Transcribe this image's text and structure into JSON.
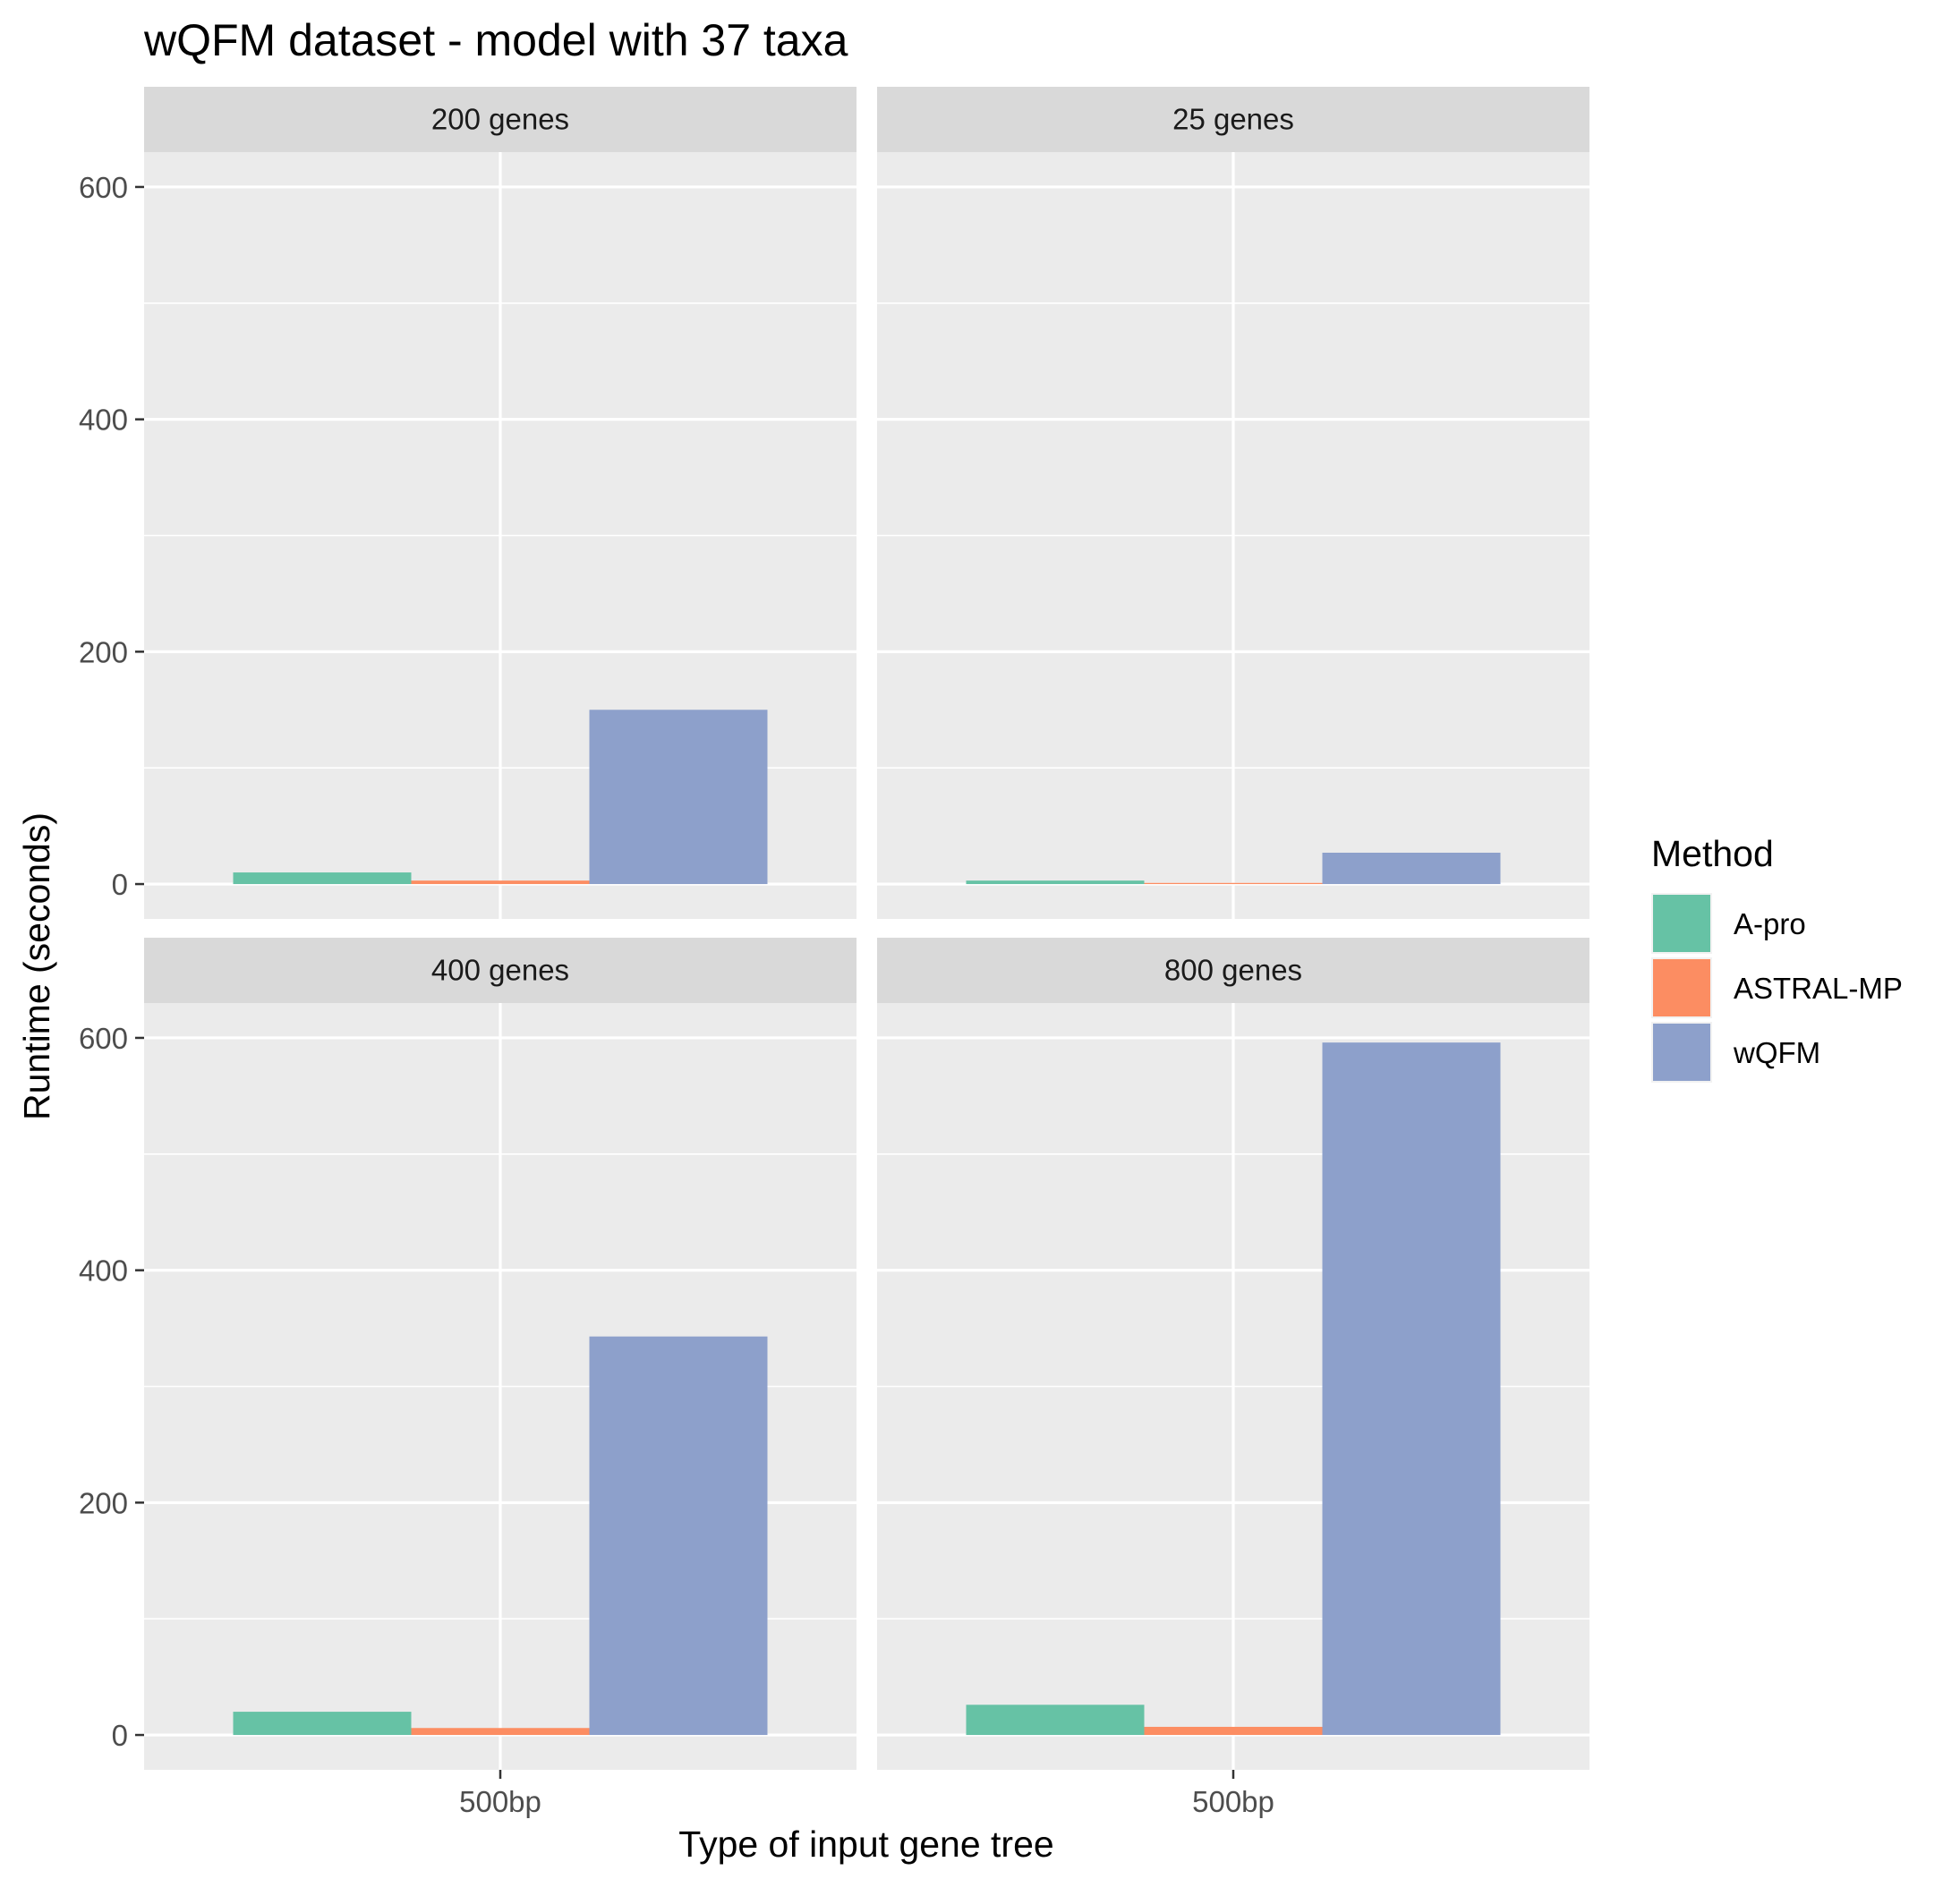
{
  "chart_data": {
    "type": "bar",
    "title": "wQFM dataset - model with 37 taxa",
    "xlabel": "Type of input gene tree",
    "ylabel": "Runtime (seconds)",
    "ylim": [
      -30,
      630
    ],
    "yticks": [
      0,
      200,
      400,
      600
    ],
    "categories": [
      "500bp"
    ],
    "legend": {
      "title": "Method",
      "position": "right",
      "items": [
        {
          "name": "A-pro",
          "color": "#66c2a5"
        },
        {
          "name": "ASTRAL-MP",
          "color": "#fc8d62"
        },
        {
          "name": "wQFM",
          "color": "#8da0cb"
        }
      ]
    },
    "grid": true,
    "panels": [
      {
        "label": "200 genes",
        "values": {
          "A-pro": 10,
          "ASTRAL-MP": 3,
          "wQFM": 150
        }
      },
      {
        "label": "25 genes",
        "values": {
          "A-pro": 3,
          "ASTRAL-MP": 1,
          "wQFM": 27
        }
      },
      {
        "label": "400 genes",
        "values": {
          "A-pro": 20,
          "ASTRAL-MP": 6,
          "wQFM": 343
        }
      },
      {
        "label": "800 genes",
        "values": {
          "A-pro": 26,
          "ASTRAL-MP": 7,
          "wQFM": 596
        }
      }
    ]
  }
}
